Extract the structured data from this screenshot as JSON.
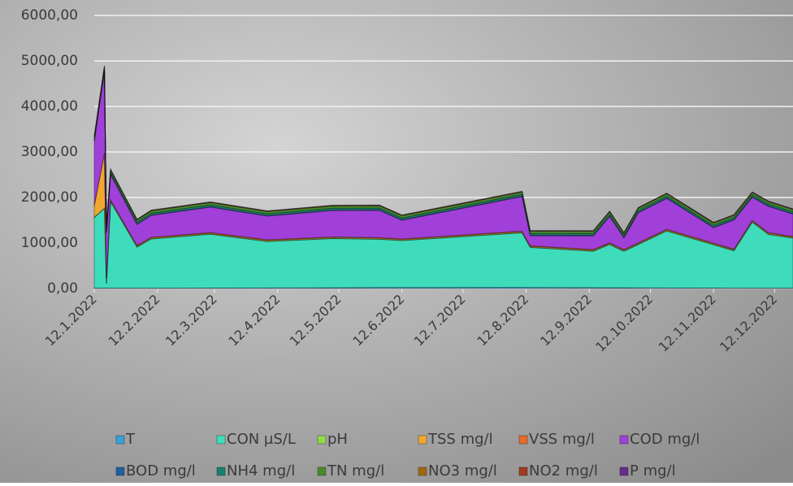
{
  "chart_data": {
    "type": "stacked_area",
    "x": [
      "2022-01-12",
      "2022-01-17",
      "2022-01-18",
      "2022-01-20",
      "2022-02-02",
      "2022-02-09",
      "2022-03-10",
      "2022-04-07",
      "2022-05-09",
      "2022-06-01",
      "2022-06-12",
      "2022-08-10",
      "2022-08-14",
      "2022-09-14",
      "2022-09-22",
      "2022-09-29",
      "2022-10-06",
      "2022-10-20",
      "2022-11-12",
      "2022-11-22",
      "2022-12-01",
      "2022-12-09",
      "2022-12-21"
    ],
    "xlim": [
      "2022-01-12",
      "2022-12-21"
    ],
    "xticks": [
      {
        "value": "2022-01-12",
        "label": "12.1.2022"
      },
      {
        "value": "2022-02-12",
        "label": "12.2.2022"
      },
      {
        "value": "2022-03-12",
        "label": "12.3.2022"
      },
      {
        "value": "2022-04-12",
        "label": "12.4.2022"
      },
      {
        "value": "2022-05-12",
        "label": "12.5.2022"
      },
      {
        "value": "2022-06-12",
        "label": "12.6.2022"
      },
      {
        "value": "2022-07-12",
        "label": "12.7.2022"
      },
      {
        "value": "2022-08-12",
        "label": "12.8.2022"
      },
      {
        "value": "2022-09-12",
        "label": "12.9.2022"
      },
      {
        "value": "2022-10-12",
        "label": "12.10.2022"
      },
      {
        "value": "2022-11-12",
        "label": "12.11.2022"
      },
      {
        "value": "2022-12-12",
        "label": "12.12.2022"
      }
    ],
    "ylim": [
      0,
      6000
    ],
    "yticks": [
      {
        "value": 0,
        "label": "0,00"
      },
      {
        "value": 1000,
        "label": "1000,00"
      },
      {
        "value": 2000,
        "label": "2000,00"
      },
      {
        "value": 3000,
        "label": "3000,00"
      },
      {
        "value": 4000,
        "label": "4000,00"
      },
      {
        "value": 5000,
        "label": "5000,00"
      },
      {
        "value": 6000,
        "label": "6000,00"
      }
    ],
    "grid": true,
    "series": [
      {
        "name": "T",
        "color": "#3aa0d8",
        "values": [
          10,
          10,
          10,
          10,
          10,
          10,
          12,
          14,
          18,
          22,
          23,
          24,
          23,
          20,
          18,
          17,
          16,
          14,
          12,
          10,
          9,
          8,
          8
        ]
      },
      {
        "name": "CON µS/L",
        "color": "#3fdcbc",
        "values": [
          1550,
          1750,
          100,
          1900,
          900,
          1080,
          1180,
          1020,
          1080,
          1060,
          1030,
          1200,
          880,
          800,
          950,
          800,
          950,
          1250,
          950,
          820,
          1450,
          1180,
          1100
        ]
      },
      {
        "name": "pH",
        "color": "#8fd94a",
        "values": [
          7,
          7,
          7,
          7,
          7,
          7,
          7,
          7,
          7,
          7,
          7,
          7,
          7,
          7,
          7,
          7,
          7,
          7,
          7,
          7,
          7,
          7,
          7
        ]
      },
      {
        "name": "TSS mg/l",
        "color": "#f0a830",
        "values": [
          250,
          1200,
          100,
          20,
          20,
          20,
          20,
          20,
          20,
          20,
          20,
          20,
          20,
          20,
          20,
          20,
          20,
          20,
          20,
          20,
          20,
          20,
          20
        ]
      },
      {
        "name": "VSS mg/l",
        "color": "#e86a2a",
        "values": [
          10,
          10,
          10,
          10,
          10,
          10,
          10,
          10,
          10,
          10,
          10,
          10,
          10,
          10,
          10,
          10,
          10,
          10,
          10,
          10,
          10,
          10,
          10
        ]
      },
      {
        "name": "COD mg/l",
        "color": "#a040d8",
        "values": [
          1400,
          1800,
          1000,
          560,
          460,
          480,
          560,
          520,
          580,
          600,
          410,
          760,
          220,
          300,
          580,
          260,
          660,
          680,
          340,
          640,
          510,
          580,
          490
        ]
      },
      {
        "name": "BOD mg/l",
        "color": "#2060a0",
        "values": [
          10,
          10,
          10,
          10,
          10,
          10,
          10,
          10,
          10,
          10,
          10,
          10,
          10,
          10,
          10,
          10,
          10,
          10,
          10,
          10,
          10,
          10,
          10
        ]
      },
      {
        "name": "NH4 mg/l",
        "color": "#1a8070",
        "values": [
          40,
          40,
          40,
          40,
          40,
          40,
          40,
          40,
          40,
          40,
          40,
          40,
          40,
          40,
          40,
          40,
          40,
          40,
          40,
          40,
          40,
          40,
          40
        ]
      },
      {
        "name": "TN mg/l",
        "color": "#4a8a2a",
        "values": [
          50,
          50,
          50,
          50,
          50,
          50,
          50,
          50,
          50,
          50,
          50,
          50,
          50,
          50,
          50,
          50,
          50,
          50,
          50,
          50,
          50,
          50,
          50
        ]
      },
      {
        "name": "NO3 mg/l",
        "color": "#a06810",
        "values": [
          10,
          10,
          10,
          10,
          10,
          10,
          10,
          10,
          10,
          10,
          10,
          10,
          10,
          10,
          10,
          10,
          10,
          10,
          10,
          10,
          10,
          10,
          10
        ]
      },
      {
        "name": "NO2 mg/l",
        "color": "#a03a20",
        "values": [
          1,
          1,
          1,
          1,
          1,
          1,
          1,
          1,
          1,
          1,
          1,
          1,
          1,
          1,
          1,
          1,
          1,
          1,
          1,
          1,
          1,
          1,
          1
        ]
      },
      {
        "name": "P mg/l",
        "color": "#6a2a90",
        "values": [
          5,
          5,
          5,
          5,
          5,
          5,
          5,
          5,
          5,
          5,
          5,
          5,
          5,
          5,
          5,
          5,
          5,
          5,
          5,
          5,
          5,
          5,
          5
        ]
      }
    ]
  }
}
